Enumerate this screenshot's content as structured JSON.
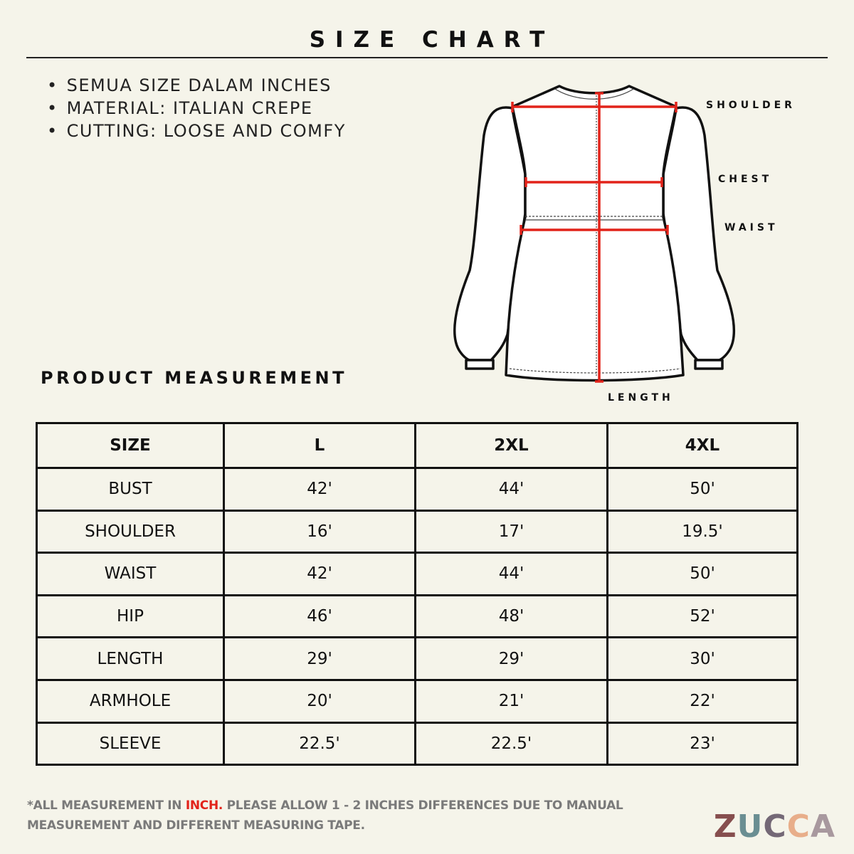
{
  "title": "SIZE CHART",
  "notes": [
    "SEMUA SIZE DALAM INCHES",
    "MATERIAL: ITALIAN CREPE",
    "CUTTING: LOOSE AND COMFY"
  ],
  "diagram": {
    "labels": {
      "shoulder": "SHOULDER",
      "chest": "CHEST",
      "waist": "WAIST",
      "length": "LENGTH"
    },
    "measure_color": "#e2231a"
  },
  "section_title": "PRODUCT MEASUREMENT",
  "table": {
    "headers": [
      "SIZE",
      "L",
      "2XL",
      "4XL"
    ],
    "rows": [
      [
        "BUST",
        "42'",
        "44'",
        "50'"
      ],
      [
        "SHOULDER",
        "16'",
        "17'",
        "19.5'"
      ],
      [
        "WAIST",
        "42'",
        "44'",
        "50'"
      ],
      [
        "HIP",
        "46'",
        "48'",
        "52'"
      ],
      [
        "LENGTH",
        "29'",
        "29'",
        "30'"
      ],
      [
        "ARMHOLE",
        "20'",
        "21'",
        "22'"
      ],
      [
        "SLEEVE",
        "22.5'",
        "22.5'",
        "23'"
      ]
    ]
  },
  "footer": {
    "prefix": "*ALL MEASUREMENT IN ",
    "highlight": "INCH.",
    "rest": " PLEASE ALLOW 1 - 2 INCHES DIFFERENCES DUE TO MANUAL",
    "line2": "MEASUREMENT AND DIFFERENT MEASURING TAPE."
  },
  "logo": {
    "text": "ZUCCA",
    "letters": [
      {
        "ch": "Z",
        "color": "#864e4e"
      },
      {
        "ch": "U",
        "color": "#6a8e92"
      },
      {
        "ch": "C",
        "color": "#746876"
      },
      {
        "ch": "C",
        "color": "#e8ae8a"
      },
      {
        "ch": "A",
        "color": "#a8989e"
      }
    ]
  }
}
